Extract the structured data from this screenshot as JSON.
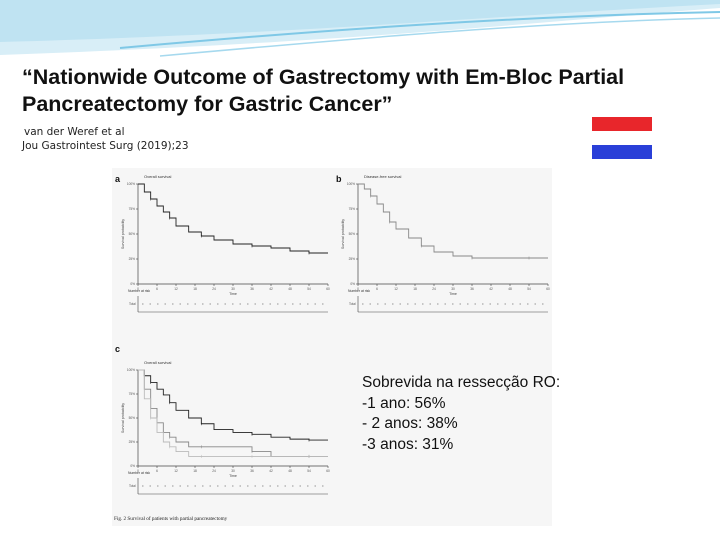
{
  "slide": {
    "title_line1": "“Nationwide Outcome of Gastrectomy with Em-Bloc Partial",
    "title_line2": "Pancreatectomy for Gastric Cancer”",
    "citation_line1": "van der Weref et al",
    "citation_line2": "Jou Gastrointest Surg (2019);23",
    "flag": {
      "name": "netherlands-flag",
      "colors": [
        "#e8262b",
        "#ffffff",
        "#2a3fd8"
      ]
    },
    "summary": {
      "heading": "Sobrevida na ressecção RO:",
      "lines": [
        "-1 ano: 56%",
        "- 2 anos: 38%",
        "-3 anos: 31%"
      ]
    }
  },
  "figure": {
    "caption": "Fig. 2  Survival of patients with partial pancreatectomy",
    "panels": [
      {
        "letter": "a",
        "heading": "Overall survival",
        "ylabel": "Survival probability",
        "xlabel": "Time",
        "risk_label": "Number at risk",
        "risk_row": "Total"
      },
      {
        "letter": "b",
        "heading": "Disease-free survival",
        "ylabel": "Survival probability",
        "xlabel": "Time",
        "risk_label": "Number at risk",
        "risk_row": "Total"
      },
      {
        "letter": "c",
        "heading": "Overall survival",
        "ylabel": "Survival probability",
        "xlabel": "Time",
        "risk_label": "Number at risk",
        "risk_row": "Total"
      }
    ]
  },
  "chart_data": [
    {
      "type": "line",
      "title": "Overall survival",
      "ylabel": "Survival probability",
      "xlabel": "Time",
      "x": [
        0,
        2,
        4,
        6,
        8,
        10,
        12,
        16,
        20,
        24,
        30,
        36,
        42,
        48,
        54,
        60
      ],
      "ylim": [
        0,
        1
      ],
      "series": [
        {
          "values": [
            1.0,
            0.92,
            0.85,
            0.78,
            0.72,
            0.66,
            0.58,
            0.52,
            0.48,
            0.44,
            0.4,
            0.38,
            0.36,
            0.33,
            0.31,
            0.31
          ]
        }
      ]
    },
    {
      "type": "line",
      "title": "Disease-free survival",
      "ylabel": "Survival probability",
      "xlabel": "Time",
      "x": [
        0,
        2,
        4,
        6,
        8,
        10,
        12,
        16,
        20,
        24,
        30,
        36,
        42,
        48,
        54,
        60
      ],
      "ylim": [
        0,
        1
      ],
      "series": [
        {
          "values": [
            1.0,
            0.95,
            0.88,
            0.8,
            0.72,
            0.62,
            0.55,
            0.46,
            0.38,
            0.32,
            0.28,
            0.26,
            0.26,
            0.26,
            0.26,
            0.26
          ]
        }
      ]
    },
    {
      "type": "line",
      "title": "Overall survival",
      "ylabel": "Survival probability",
      "xlabel": "Time",
      "x": [
        0,
        2,
        4,
        6,
        8,
        10,
        12,
        16,
        20,
        24,
        30,
        36,
        42,
        48,
        54,
        60
      ],
      "ylim": [
        0,
        1
      ],
      "series": [
        {
          "values": [
            1.0,
            0.94,
            0.87,
            0.8,
            0.74,
            0.66,
            0.58,
            0.5,
            0.44,
            0.38,
            0.35,
            0.33,
            0.3,
            0.28,
            0.27,
            0.27
          ]
        },
        {
          "values": [
            1.0,
            0.8,
            0.6,
            0.45,
            0.35,
            0.3,
            0.25,
            0.2,
            0.2,
            0.2,
            0.2,
            0.15,
            0.1,
            0.1,
            0.1,
            0.1
          ]
        },
        {
          "values": [
            1.0,
            0.7,
            0.5,
            0.35,
            0.25,
            0.2,
            0.15,
            0.1,
            0.1,
            0.1,
            0.1,
            0.1,
            0.1,
            0.1,
            0.1,
            0.1
          ]
        }
      ]
    }
  ]
}
